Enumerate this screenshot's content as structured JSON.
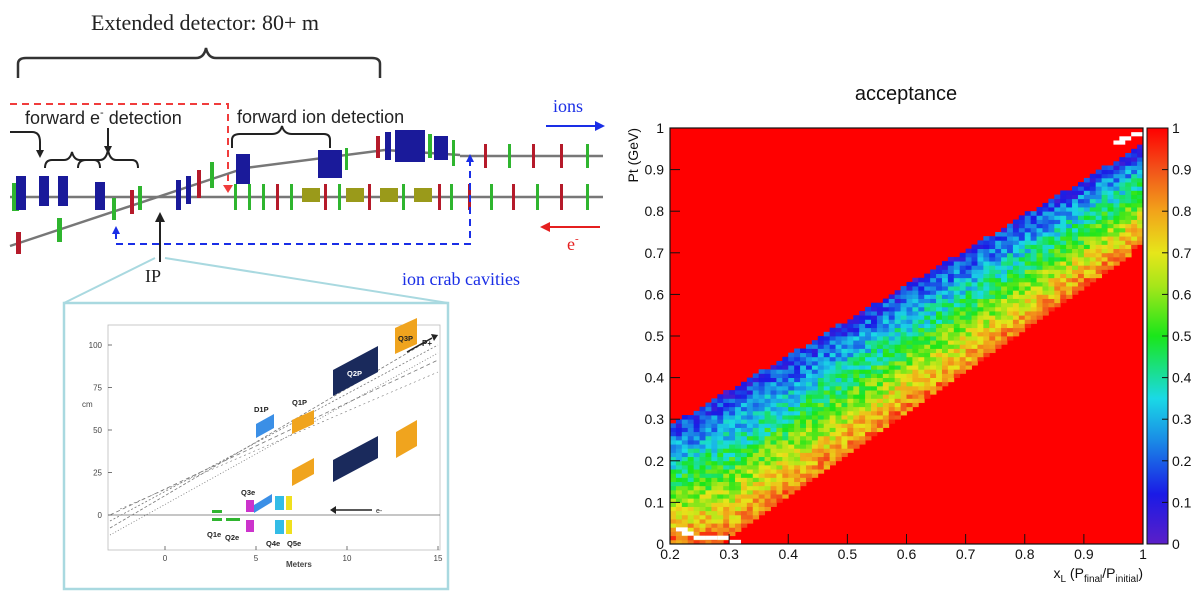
{
  "beamline": {
    "title": "Extended detector: 80+ m",
    "forward_e_label": "forward e",
    "forward_e_sup": "-",
    "forward_e_suffix": " detection",
    "forward_ion_label": "forward ion detection",
    "ions_label": "ions",
    "electron_label": "e",
    "electron_sup": "-",
    "ip_label": "IP",
    "crab_label": "ion crab cavities",
    "colors": {
      "ion_arrow": "#1a2ee6",
      "electron_arrow": "#e51f1f",
      "magnet_blue": "#1a1a9a",
      "magnet_green": "#2fb52f",
      "magnet_red": "#b51a2a",
      "magnet_olive": "#9a9a1a"
    }
  },
  "inset": {
    "y_axis_title": "cm",
    "x_axis_title": "Meters",
    "y_ticks": [
      "0",
      "25",
      "50",
      "75",
      "100"
    ],
    "x_ticks": [
      "0",
      "5",
      "10",
      "15"
    ],
    "magnets": [
      "D1P",
      "Q1P",
      "Q2P",
      "Q3P",
      "Q3e",
      "Q1e",
      "Q2e",
      "Q4e",
      "Q5e"
    ],
    "p_label": "P+",
    "e_label": "e-"
  },
  "heatmap": {
    "title": "acceptance",
    "ylabel": "Pt (GeV)",
    "xlabel_main": "x",
    "xlabel_sub": "L",
    "xlabel_rest": " (P",
    "xlabel_final": "final",
    "xlabel_sep": "/P",
    "xlabel_initial": "initial",
    "xlabel_end": ")",
    "x_ticks": [
      "0.2",
      "0.3",
      "0.4",
      "0.5",
      "0.6",
      "0.7",
      "0.8",
      "0.9",
      "1"
    ],
    "y_ticks": [
      "0",
      "0.1",
      "0.2",
      "0.3",
      "0.4",
      "0.5",
      "0.6",
      "0.7",
      "0.8",
      "0.9",
      "1"
    ],
    "colorbar_ticks": [
      "0",
      "0.1",
      "0.2",
      "0.3",
      "0.4",
      "0.5",
      "0.6",
      "0.7",
      "0.8",
      "0.9",
      "1"
    ]
  },
  "chart_data": {
    "type": "heatmap",
    "title": "acceptance",
    "xlabel": "x_L (P_final/P_initial)",
    "ylabel": "Pt (GeV)",
    "xlim": [
      0.2,
      1.0
    ],
    "ylim": [
      0,
      1.0
    ],
    "zlim": [
      0,
      1.0
    ],
    "background_value": 1.0,
    "description_band": "diagonal band of lower acceptance from about (x_L=0.2, Pt=0.1) to (x_L=1.0, Pt=0.95); values near 0.1-0.2 at the band's upper edge rising to 0.8-0.9 at its lower edge"
  }
}
